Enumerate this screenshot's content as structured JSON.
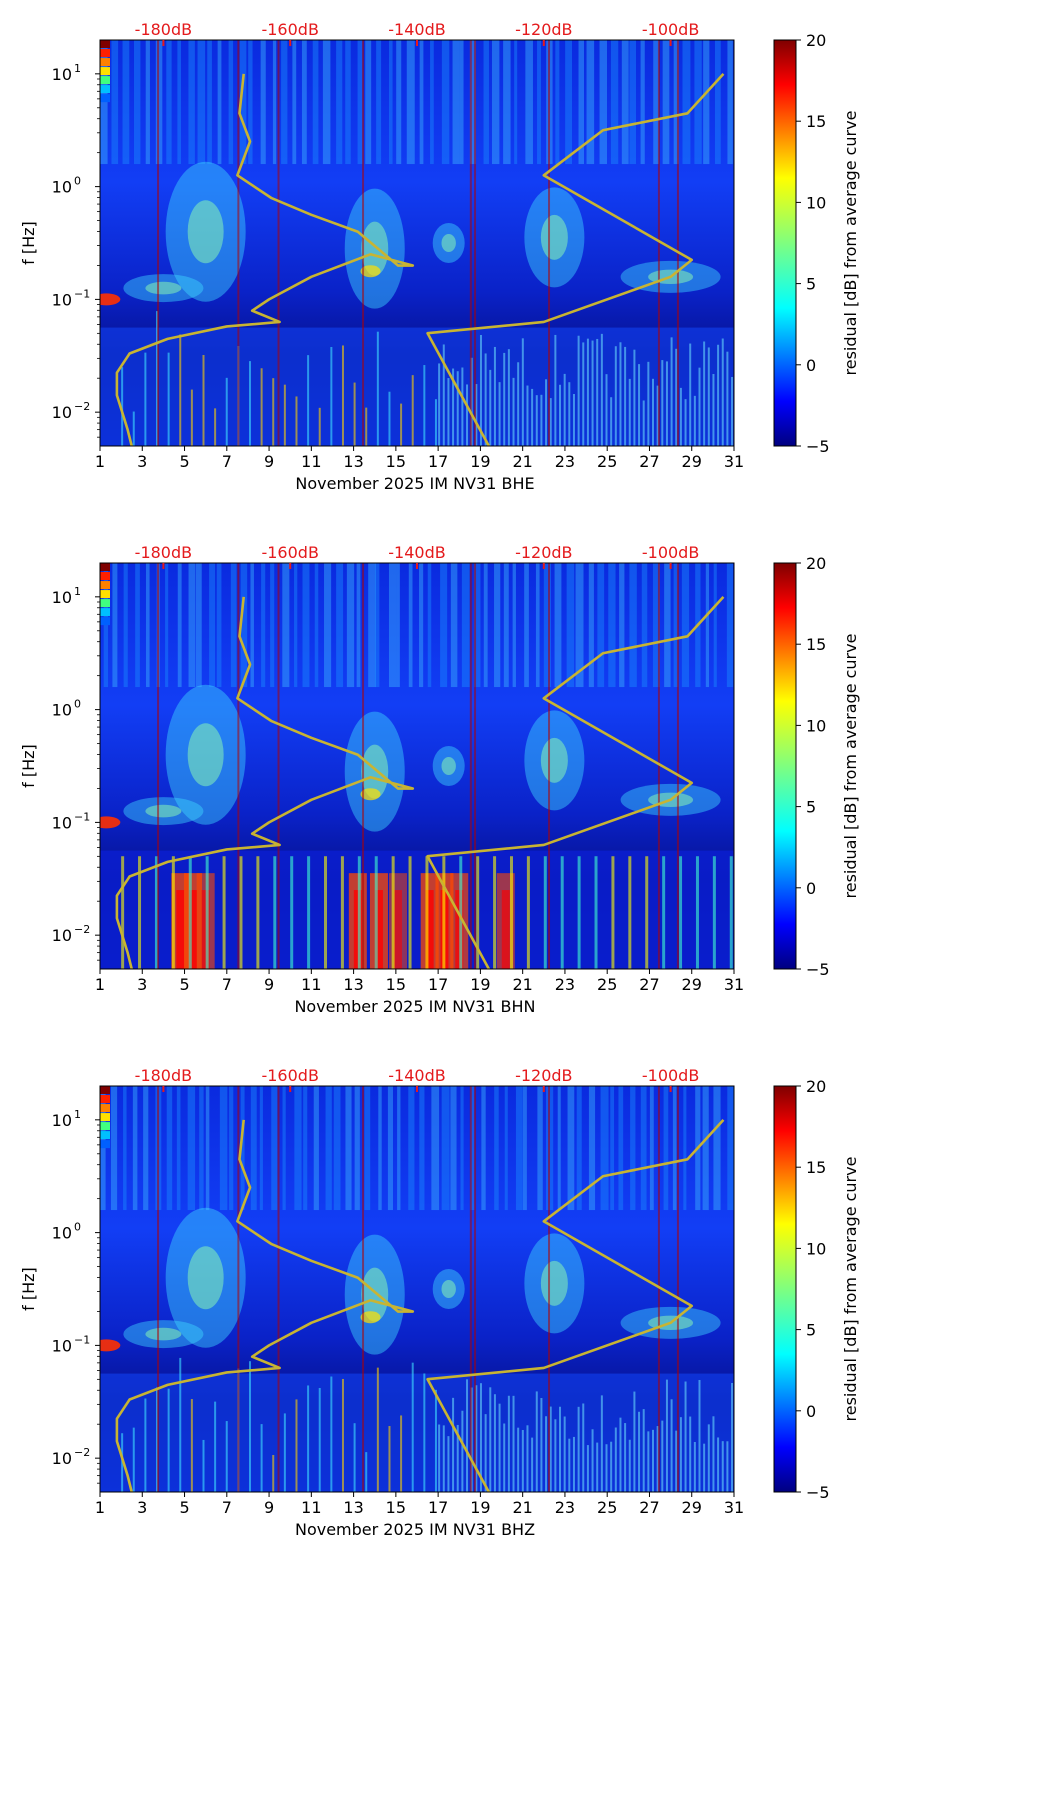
{
  "chart_data": [
    {
      "type": "heatmap",
      "title": "",
      "xlabel": "November 2025 IM NV31  BHE",
      "ylabel": "f [Hz]",
      "xlim": [
        1,
        31
      ],
      "ylim_log10": [
        -2.3,
        1.3
      ],
      "x_ticks": [
        "1",
        "3",
        "5",
        "7",
        "9",
        "11",
        "13",
        "15",
        "17",
        "19",
        "21",
        "23",
        "25",
        "27",
        "29",
        "31"
      ],
      "y_ticks": [
        {
          "base": "10",
          "exp": "1"
        },
        {
          "base": "10",
          "exp": "0"
        },
        {
          "base": "10",
          "exp": "−1"
        },
        {
          "base": "10",
          "exp": "−2"
        }
      ],
      "db_labels": [
        "-180dB",
        "-160dB",
        "-140dB",
        "-120dB",
        "-100dB"
      ],
      "colorbar": {
        "label": "residual [dB] from average curve",
        "min": -5,
        "max": 20,
        "ticks": [
          "−5",
          "0",
          "5",
          "10",
          "15",
          "20"
        ]
      },
      "noise_curve_days": [
        2.5,
        2.3,
        1.8,
        1.8,
        2.4,
        4.2,
        7.0,
        9.5,
        8.2,
        9.0,
        11.0,
        13.8,
        15.8,
        15.1,
        13.2,
        11.0,
        9.1,
        7.5,
        8.1,
        7.6,
        7.8
      ],
      "noise_curve_log10_hz": [
        -2.3,
        -2.15,
        -1.85,
        -1.65,
        -1.48,
        -1.35,
        -1.24,
        -1.2,
        -1.1,
        -1.0,
        -0.8,
        -0.6,
        -0.7,
        -0.7,
        -0.4,
        -0.25,
        -0.1,
        0.1,
        0.4,
        0.65,
        1.0
      ],
      "reference_curve_days": [
        19.4,
        16.5,
        22.0,
        28.0,
        29.0,
        22.0,
        24.8,
        28.8,
        30.5
      ],
      "reference_curve_log10_hz": [
        -2.3,
        -1.3,
        -1.2,
        -0.8,
        -0.65,
        0.1,
        0.5,
        0.65,
        1.0
      ]
    },
    {
      "type": "heatmap",
      "title": "",
      "xlabel": "November 2025 IM NV31  BHN",
      "ylabel": "f [Hz]",
      "xlim": [
        1,
        31
      ],
      "ylim_log10": [
        -2.3,
        1.3
      ],
      "x_ticks": [
        "1",
        "3",
        "5",
        "7",
        "9",
        "11",
        "13",
        "15",
        "17",
        "19",
        "21",
        "23",
        "25",
        "27",
        "29",
        "31"
      ],
      "y_ticks": [
        {
          "base": "10",
          "exp": "1"
        },
        {
          "base": "10",
          "exp": "0"
        },
        {
          "base": "10",
          "exp": "−1"
        },
        {
          "base": "10",
          "exp": "−2"
        }
      ],
      "db_labels": [
        "-180dB",
        "-160dB",
        "-140dB",
        "-120dB",
        "-100dB"
      ],
      "colorbar": {
        "label": "residual [dB] from average curve",
        "min": -5,
        "max": 20,
        "ticks": [
          "−5",
          "0",
          "5",
          "10",
          "15",
          "20"
        ]
      },
      "noise_curve_days": [
        2.5,
        2.3,
        1.8,
        1.8,
        2.4,
        4.2,
        7.0,
        9.5,
        8.2,
        9.0,
        11.0,
        13.8,
        15.8,
        15.1,
        13.2,
        11.0,
        9.1,
        7.5,
        8.1,
        7.6,
        7.8
      ],
      "noise_curve_log10_hz": [
        -2.3,
        -2.15,
        -1.85,
        -1.65,
        -1.48,
        -1.35,
        -1.24,
        -1.2,
        -1.1,
        -1.0,
        -0.8,
        -0.6,
        -0.7,
        -0.7,
        -0.4,
        -0.25,
        -0.1,
        0.1,
        0.4,
        0.65,
        1.0
      ],
      "reference_curve_days": [
        19.4,
        16.5,
        22.0,
        28.0,
        29.0,
        22.0,
        24.8,
        28.8,
        30.5
      ],
      "reference_curve_log10_hz": [
        -2.3,
        -1.3,
        -1.2,
        -0.8,
        -0.65,
        0.1,
        0.5,
        0.65,
        1.0
      ]
    },
    {
      "type": "heatmap",
      "title": "",
      "xlabel": "November 2025 IM NV31  BHZ",
      "ylabel": "f [Hz]",
      "xlim": [
        1,
        31
      ],
      "ylim_log10": [
        -2.3,
        1.3
      ],
      "x_ticks": [
        "1",
        "3",
        "5",
        "7",
        "9",
        "11",
        "13",
        "15",
        "17",
        "19",
        "21",
        "23",
        "25",
        "27",
        "29",
        "31"
      ],
      "y_ticks": [
        {
          "base": "10",
          "exp": "1"
        },
        {
          "base": "10",
          "exp": "0"
        },
        {
          "base": "10",
          "exp": "−1"
        },
        {
          "base": "10",
          "exp": "−2"
        }
      ],
      "db_labels": [
        "-180dB",
        "-160dB",
        "-140dB",
        "-120dB",
        "-100dB"
      ],
      "colorbar": {
        "label": "residual [dB] from average curve",
        "min": -5,
        "max": 20,
        "ticks": [
          "−5",
          "0",
          "5",
          "10",
          "15",
          "20"
        ]
      },
      "noise_curve_days": [
        2.5,
        2.3,
        1.8,
        1.8,
        2.4,
        4.2,
        7.0,
        9.5,
        8.2,
        9.0,
        11.0,
        13.8,
        15.8,
        15.1,
        13.2,
        11.0,
        9.1,
        7.5,
        8.1,
        7.6,
        7.8
      ],
      "noise_curve_log10_hz": [
        -2.3,
        -2.15,
        -1.85,
        -1.65,
        -1.48,
        -1.35,
        -1.24,
        -1.2,
        -1.1,
        -1.0,
        -0.8,
        -0.6,
        -0.7,
        -0.7,
        -0.4,
        -0.25,
        -0.1,
        0.1,
        0.4,
        0.65,
        1.0
      ],
      "reference_curve_days": [
        19.4,
        16.5,
        22.0,
        28.0,
        29.0,
        22.0,
        24.8,
        28.8,
        30.5
      ],
      "reference_curve_log10_hz": [
        -2.3,
        -1.3,
        -1.2,
        -0.8,
        -0.65,
        0.1,
        0.5,
        0.65,
        1.0
      ]
    }
  ],
  "colors": {
    "db_label": "#e41a1c",
    "curve": "#c8b432",
    "jet_stops": [
      "#00007f",
      "#0000ff",
      "#007fff",
      "#00ffff",
      "#7fff7f",
      "#ffff00",
      "#ff7f00",
      "#ff0000",
      "#7f0000"
    ]
  }
}
